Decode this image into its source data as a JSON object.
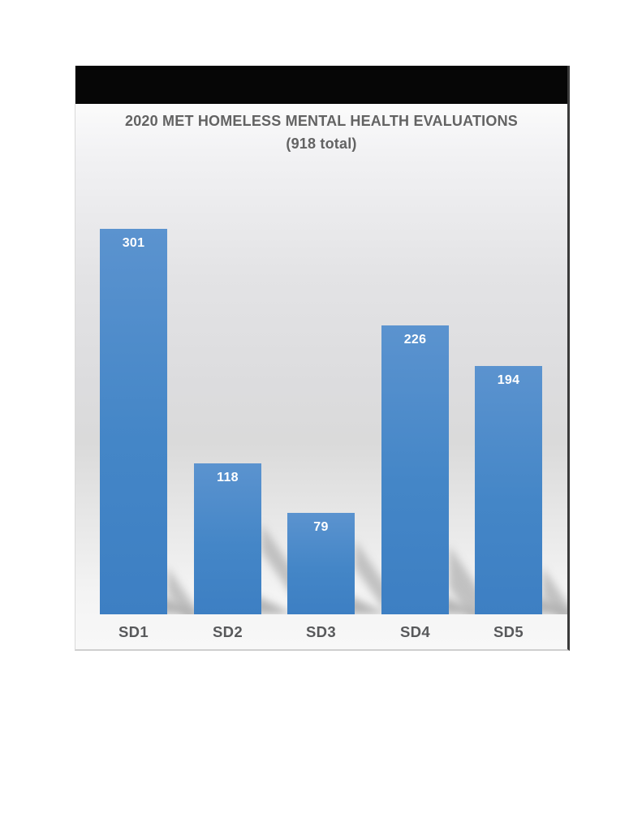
{
  "chart_data": {
    "type": "bar",
    "title": "2020 MET HOMELESS MENTAL HEALTH EVALUATIONS",
    "subtitle": "(918 total)",
    "total": 918,
    "categories": [
      "SD1",
      "SD2",
      "SD3",
      "SD4",
      "SD5"
    ],
    "values": [
      301,
      118,
      79,
      226,
      194
    ],
    "xlabel": "",
    "ylabel": "",
    "ylim": [
      0,
      350
    ],
    "grid": false,
    "legend": false,
    "value_labels": "inside-top",
    "bar_color_top": "#5b93cf",
    "bar_color_bottom": "#3d7fc3",
    "value_label_color": "#ffffff",
    "axis_label_color": "#58595b",
    "title_color": "#636363",
    "header_band_color": "#060606",
    "background": "gradient-gray"
  }
}
